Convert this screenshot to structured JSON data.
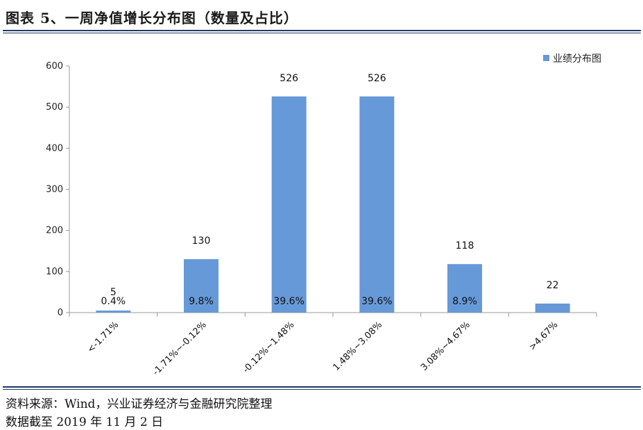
{
  "figure": {
    "title": "图表 5、一周净值增长分布图（数量及占比）",
    "source": "资料来源：Wind，兴业证券经济与金融研究院整理",
    "date_note": "数据截至 2019 年 11 月 2 日"
  },
  "chart_data": {
    "type": "bar",
    "title": "",
    "xlabel": "",
    "ylabel": "",
    "categories": [
      "<-1.71%",
      "-1.71%~-0.12%",
      "-0.12%~1.48%",
      "1.48%~3.08%",
      "3.08%~4.67%",
      ">4.67%"
    ],
    "series": [
      {
        "name": "业绩分布图",
        "values": [
          5,
          130,
          526,
          526,
          118,
          22
        ],
        "percent_labels": [
          "0.4%",
          "9.8%",
          "39.6%",
          "39.6%",
          "8.9%",
          ""
        ],
        "color": "#6699d8"
      }
    ],
    "ylim": [
      0,
      600
    ],
    "yticks": [
      0,
      100,
      200,
      300,
      400,
      500,
      600
    ],
    "grid": false,
    "legend_position": "top-right"
  }
}
